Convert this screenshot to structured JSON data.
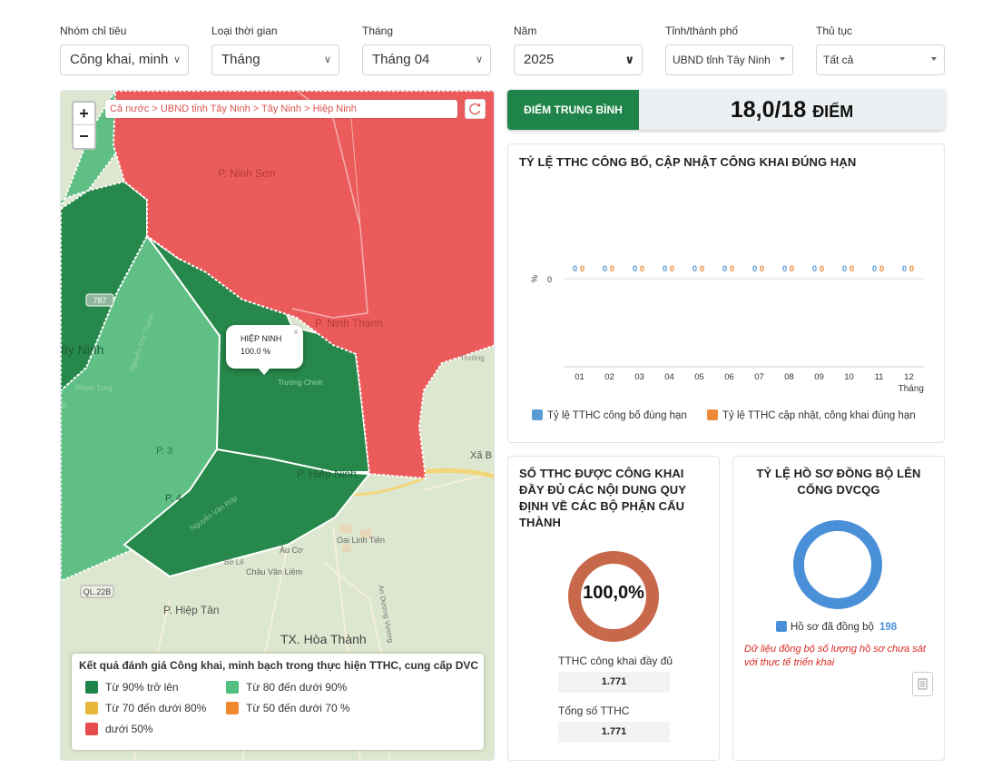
{
  "filters": [
    {
      "label": "Nhóm chỉ tiêu",
      "value": "Công khai, minh"
    },
    {
      "label": "Loại thời gian",
      "value": "Tháng"
    },
    {
      "label": "Tháng",
      "value": "Tháng 04"
    },
    {
      "label": "Năm",
      "value": "2025"
    },
    {
      "label": "Tỉnh/thành phố",
      "value": "UBND tỉnh Tây Ninh"
    },
    {
      "label": "Thủ tục",
      "value": "Tất cả"
    }
  ],
  "map": {
    "zoom_in": "+",
    "zoom_out": "−",
    "breadcrumb": "Cả nước > UBND tỉnh Tây Ninh > Tây Ninh > Hiệp Ninh",
    "popup": {
      "name": "HIỆP NINH",
      "value": "100.0 %",
      "close": "×"
    },
    "labels": {
      "ninh_son": "P. Ninh Sơn",
      "ninh_thanh": "P. Ninh Thạnh",
      "tay_ninh": "ây Ninh",
      "hiep_ninh": "P. Hiệp Ninh",
      "p3": "P. 3",
      "p4": "P. 4",
      "hiep_tan": "P. Hiệp Tân",
      "hoa_thanh": "TX. Hòa Thành",
      "au_co": "Âu Cơ",
      "oai_linh_tien": "Oai Linh Tiên",
      "chau_van_liem": "Châu Văn Liêm",
      "ql22b": "QL.22B",
      "road_787": "787",
      "xa_b": "Xã B",
      "truong_chinh": "Trường Chinh",
      "pham_tung": "Phạm Tung",
      "nguyen_chi_thanh": "Nguyễn Chí Thanh",
      "nguyen_van_rop": "Nguyễn Văn Rốp",
      "an_duong_vuong": "An Dương Vương",
      "bo_le": "Bờ Lê",
      "truong": "Trường",
      "e": "e"
    },
    "legend": {
      "title": "Kết quả đánh giá Công khai, minh bạch trong thực hiện TTHC, cung cấp DVC",
      "items": [
        {
          "label": "Từ 90% trở lên",
          "color": "#1e8449"
        },
        {
          "label": "Từ 80 đến dưới 90%",
          "color": "#52be80"
        },
        {
          "label": "Từ 70 đến dưới 80%",
          "color": "#e8b83d"
        },
        {
          "label": "Từ 50 đến dưới 70 %",
          "color": "#f0892e"
        },
        {
          "label": "dưới 50%",
          "color": "#e74c4c"
        }
      ]
    }
  },
  "score": {
    "label": "ĐIỂM TRUNG BÌNH",
    "value": "18,0/18",
    "unit": "ĐIỂM"
  },
  "chart_data": {
    "type": "bar",
    "title": "TỶ LỆ TTHC CÔNG BỐ, CẬP NHẬT CÔNG KHAI ĐÚNG HẠN",
    "categories": [
      "01",
      "02",
      "03",
      "04",
      "05",
      "06",
      "07",
      "08",
      "09",
      "10",
      "11",
      "12"
    ],
    "series": [
      {
        "name": "Tỷ lệ TTHC công bố đúng hạn",
        "color": "#5b9bd5",
        "values": [
          0,
          0,
          0,
          0,
          0,
          0,
          0,
          0,
          0,
          0,
          0,
          0
        ]
      },
      {
        "name": "Tỷ lệ TTHC cập nhật, công khai đúng hạn",
        "color": "#ed8a3a",
        "values": [
          0,
          0,
          0,
          0,
          0,
          0,
          0,
          0,
          0,
          0,
          0,
          0
        ]
      }
    ],
    "xlabel": "Tháng",
    "ylabel": "%",
    "yticks": [
      "0"
    ]
  },
  "chart2": {
    "title": "SỐ TTHC ĐƯỢC CÔNG KHAI ĐẦY ĐỦ CÁC NỘI DUNG QUY ĐỊNH VỀ CÁC BỘ PHẬN CẤU THÀNH",
    "title_lines": [
      "SỐ TTHC ĐƯỢC CÔNG KHAI",
      "ĐẦY ĐỦ CÁC NỘI DUNG QUY",
      "ĐỊNH VỀ CÁC BỘ PHẬN CẤU",
      "THÀNH"
    ],
    "percent": "100,0%",
    "ratio": 1.0,
    "color": "#c8684a",
    "stats": [
      {
        "label": "TTHC công khai đầy đủ",
        "value": "1.771"
      },
      {
        "label": "Tổng số TTHC",
        "value": "1.771"
      }
    ]
  },
  "chart3": {
    "title": "TỶ LỆ HỒ SƠ ĐỒNG BỘ LÊN CỔNG DVCQG",
    "title_lines": [
      "TỶ LỆ HỒ SƠ ĐỒNG BỘ LÊN",
      "CỔNG DVCQG"
    ],
    "legend_label": "Hồ sơ đã đồng bộ",
    "count": "198",
    "color": "#4a90d9",
    "ratio": 1.0,
    "note": "Dữ liệu đồng bộ số lượng hồ sơ chưa sát với thực tế triển khai"
  }
}
